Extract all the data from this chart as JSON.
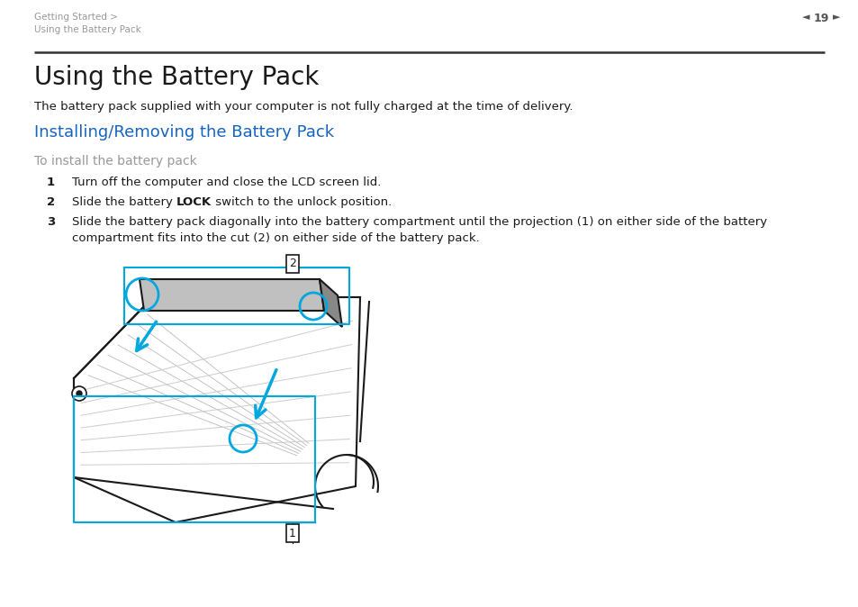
{
  "bg_color": "#ffffff",
  "header_line1": "Getting Started >",
  "header_line2": "Using the Battery Pack",
  "header_breadcrumb_color": "#999999",
  "header_page_num": "19",
  "header_page_color": "#555555",
  "title": "Using the Battery Pack",
  "title_fontsize": 20,
  "title_color": "#1a1a1a",
  "subtitle": "The battery pack supplied with your computer is not fully charged at the time of delivery.",
  "subtitle_fontsize": 9.5,
  "subtitle_color": "#1a1a1a",
  "section_heading": "Installing/Removing the Battery Pack",
  "section_heading_color": "#1565c0",
  "section_heading_fontsize": 13,
  "subheading": "To install the battery pack",
  "subheading_color": "#999999",
  "subheading_fontsize": 10,
  "step1": "Turn off the computer and close the LCD screen lid.",
  "step2a": "Slide the battery ",
  "step2b": "LOCK",
  "step2c": " switch to the unlock position.",
  "step3": "Slide the battery pack diagonally into the battery compartment until the projection (1) on either side of the battery\ncompartment fits into the cut (2) on either side of the battery pack.",
  "step_fontsize": 9.5,
  "step_color": "#1a1a1a",
  "cyan": "#00a8e0",
  "black": "#1a1a1a",
  "gray_batt": "#c0c0c0",
  "gray_dark": "#888888"
}
